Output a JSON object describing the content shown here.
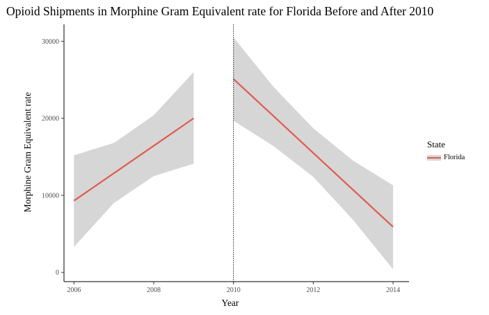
{
  "chart_data": {
    "type": "line",
    "title": "Opioid Shipments in Morphine Gram Equivalent rate for Florida Before and After 2010",
    "xlabel": "Year",
    "ylabel": "Morphine Gram Equivalent rate",
    "xlim": [
      2005.75,
      2014.4
    ],
    "ylim": [
      -1200,
      32200
    ],
    "xticks": [
      2006,
      2008,
      2010,
      2012,
      2014
    ],
    "yticks": [
      0,
      10000,
      20000,
      30000
    ],
    "vline": {
      "x": 2010,
      "style": "dotted"
    },
    "legend": {
      "title": "State",
      "position": "right"
    },
    "series": [
      {
        "name": "Florida",
        "color": "#e05a4f",
        "band_color": "#d6d6d6",
        "segments": [
          {
            "x": [
              2006,
              2009
            ],
            "y": [
              9300,
              20000
            ],
            "band_x": [
              2006,
              2007,
              2008,
              2009
            ],
            "band_upper": [
              15200,
              16800,
              20400,
              26000
            ],
            "band_lower": [
              3300,
              9000,
              12500,
              14100
            ]
          },
          {
            "x": [
              2010,
              2014
            ],
            "y": [
              25100,
              5900
            ],
            "band_x": [
              2010,
              2011,
              2012,
              2013,
              2014
            ],
            "band_upper": [
              30500,
              24100,
              18700,
              14500,
              11300
            ],
            "band_lower": [
              19700,
              16400,
              12400,
              6800,
              400
            ]
          }
        ]
      }
    ]
  }
}
